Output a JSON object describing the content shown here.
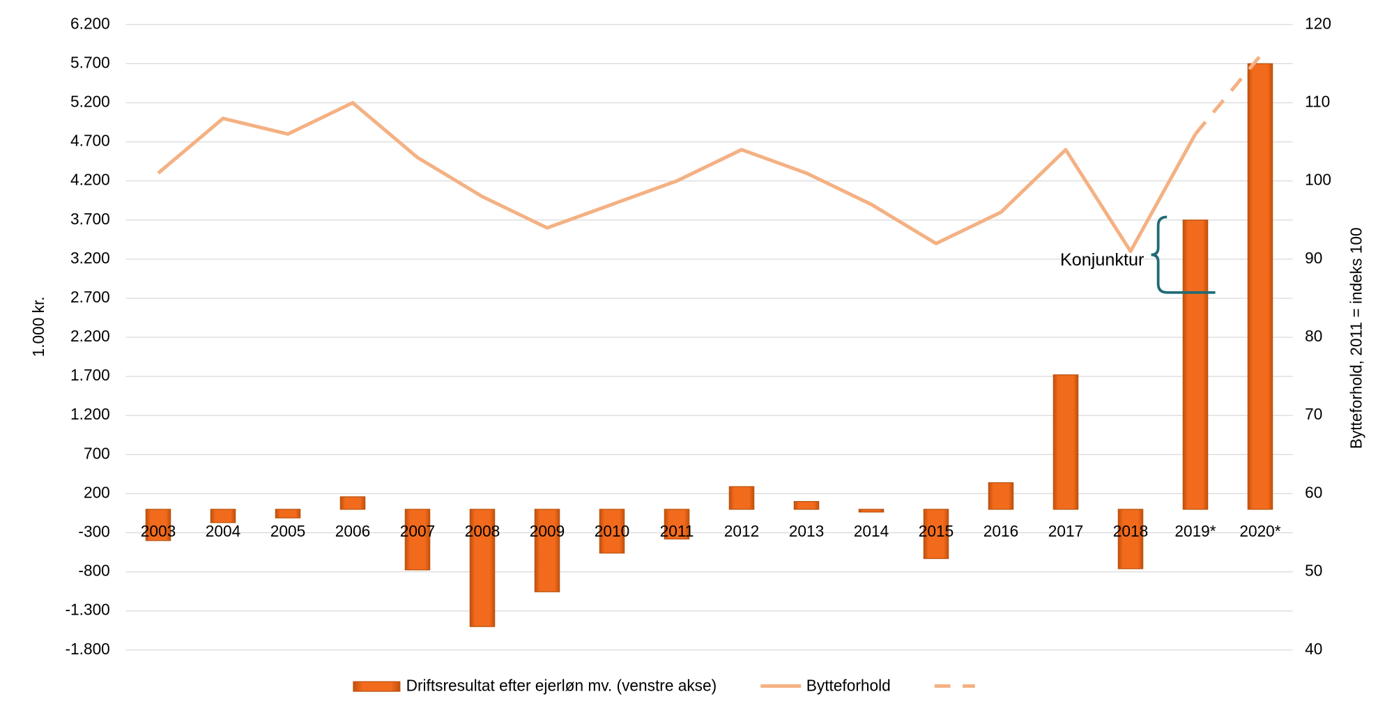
{
  "chart_data": {
    "type": "bar",
    "categories": [
      "2003",
      "2004",
      "2005",
      "2006",
      "2007",
      "2008",
      "2009",
      "2010",
      "2011",
      "2012",
      "2013",
      "2014",
      "2015",
      "2016",
      "2017",
      "2018",
      "2019*",
      "2020*"
    ],
    "series": [
      {
        "name": "Driftsresultat efter ejerløn mv. (venstre akse)",
        "type": "bar",
        "color": "#f26b1d",
        "values": [
          -400,
          -170,
          -110,
          160,
          -775,
          -1500,
          -1055,
          -560,
          -380,
          290,
          100,
          -35,
          -630,
          340,
          1720,
          -760,
          3700,
          5700
        ]
      },
      {
        "name": "Bytteforhold",
        "type": "line",
        "axis": "y2",
        "color": "#f4b183",
        "dash": false,
        "values": [
          101,
          108,
          106,
          110,
          103,
          98,
          94,
          97,
          100,
          104,
          101,
          97,
          92,
          96,
          104,
          91,
          106,
          null
        ]
      },
      {
        "type": "line",
        "axis": "y2",
        "color": "#f4b183",
        "dash": true,
        "values": [
          null,
          null,
          null,
          null,
          null,
          null,
          null,
          null,
          null,
          null,
          null,
          null,
          null,
          null,
          null,
          null,
          106,
          116
        ]
      }
    ],
    "ylabel": "1.000 kr.",
    "y2label": "Bytteforhold, 2011 = indeks 100",
    "ylim": [
      -1800,
      6200
    ],
    "yticks": [
      {
        "value": -1800,
        "label": "-1.800"
      },
      {
        "value": -1300,
        "label": "-1.300"
      },
      -800,
      -300,
      200,
      700,
      {
        "value": 1200,
        "label": "1.200"
      },
      {
        "value": 1700,
        "label": "1.700"
      },
      {
        "value": 2200,
        "label": "2.200"
      },
      {
        "value": 2700,
        "label": "2.700"
      },
      {
        "value": 3200,
        "label": "3.200"
      },
      {
        "value": 3700,
        "label": "3.700"
      },
      {
        "value": 4200,
        "label": "4.200"
      },
      {
        "value": 4700,
        "label": "4.700"
      },
      {
        "value": 5200,
        "label": "5.200"
      },
      {
        "value": 5700,
        "label": "5.700"
      },
      {
        "value": 6200,
        "label": "6.200"
      }
    ],
    "y2lim": [
      40,
      120
    ],
    "y2ticks": [
      40,
      50,
      60,
      70,
      80,
      90,
      100,
      110,
      120
    ],
    "grid": true,
    "annotation": "Konjunktur",
    "legend": "bottom"
  }
}
